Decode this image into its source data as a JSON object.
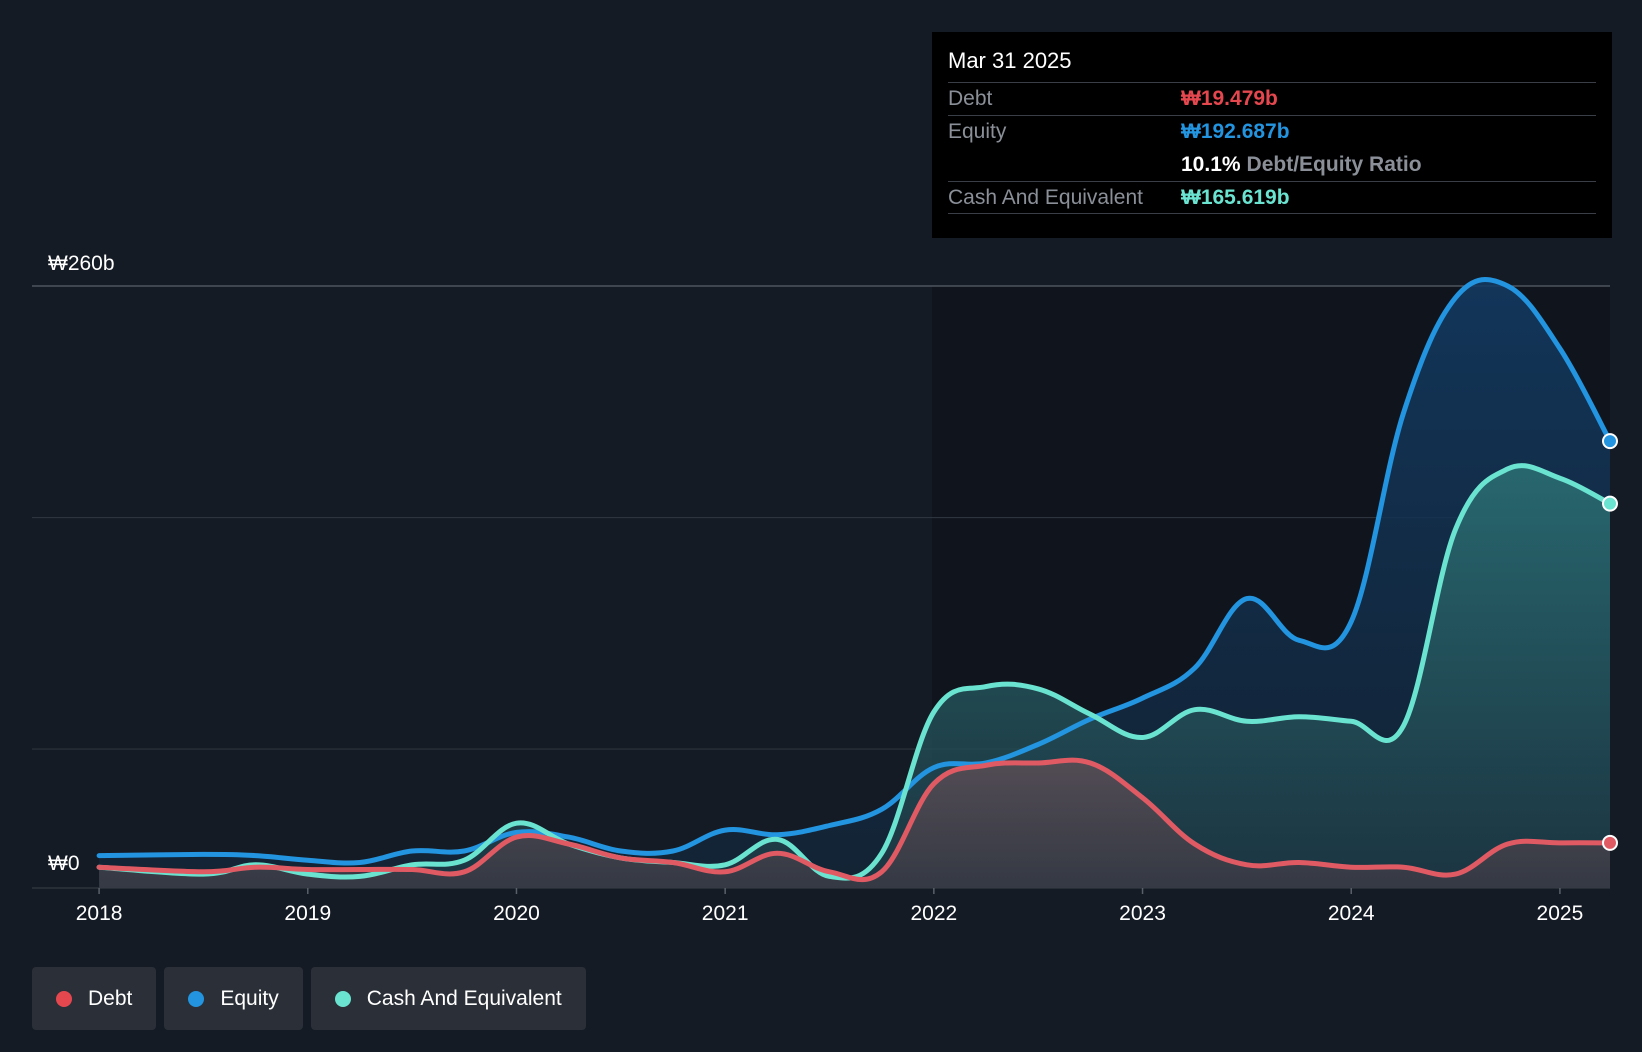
{
  "tooltip": {
    "date": "Mar 31 2025",
    "debt_label": "Debt",
    "debt_value": "₩19.479b",
    "equity_label": "Equity",
    "equity_value": "₩192.687b",
    "ratio_value": "10.1%",
    "ratio_label": "Debt/Equity Ratio",
    "cash_label": "Cash And Equivalent",
    "cash_value": "₩165.619b"
  },
  "legend": [
    {
      "label": "Debt",
      "color": "#e5474f"
    },
    {
      "label": "Equity",
      "color": "#2394df"
    },
    {
      "label": "Cash And Equivalent",
      "color": "#6ae3d0"
    }
  ],
  "colors": {
    "debt": "#e05a64",
    "equity": "#2394df",
    "cash": "#6ae3d0",
    "background": "#151b24",
    "tooltip_debt": "#e5474f",
    "tooltip_equity": "#2394df",
    "tooltip_cash": "#6ae3d0"
  },
  "chart_data": {
    "type": "area",
    "title": "",
    "xlabel": "",
    "ylabel": "",
    "y_top_label": "₩260b",
    "y_bottom_label": "₩0",
    "ylim": [
      0,
      260
    ],
    "xlim": [
      2017.99,
      2025.24
    ],
    "x_ticks": [
      "2018",
      "2019",
      "2020",
      "2021",
      "2022",
      "2023",
      "2024",
      "2025"
    ],
    "x_tick_values": [
      2018,
      2019,
      2020,
      2021,
      2022,
      2023,
      2024,
      2025
    ],
    "grid": true,
    "legend_position": "bottom-left",
    "series": [
      {
        "name": "Debt",
        "x": [
          2018.0,
          2018.5,
          2018.75,
          2019.0,
          2019.25,
          2019.5,
          2019.75,
          2020.0,
          2020.25,
          2020.5,
          2020.75,
          2021.0,
          2021.25,
          2021.5,
          2021.75,
          2022.0,
          2022.25,
          2022.5,
          2022.75,
          2023.0,
          2023.25,
          2023.5,
          2023.75,
          2024.0,
          2024.25,
          2024.5,
          2024.75,
          2025.0,
          2025.24
        ],
        "values": [
          9,
          7,
          9,
          8,
          8,
          8,
          7,
          22,
          19,
          13,
          11,
          7,
          15,
          7,
          7,
          45,
          53,
          54,
          54,
          39,
          19,
          10,
          11,
          9,
          9,
          6,
          19,
          19.5,
          19.5
        ]
      },
      {
        "name": "Equity",
        "x": [
          2018.0,
          2018.5,
          2018.75,
          2019.0,
          2019.25,
          2019.5,
          2019.75,
          2020.0,
          2020.25,
          2020.5,
          2020.75,
          2021.0,
          2021.25,
          2021.5,
          2021.75,
          2022.0,
          2022.25,
          2022.5,
          2022.75,
          2023.0,
          2023.25,
          2023.5,
          2023.75,
          2024.0,
          2024.25,
          2024.5,
          2024.75,
          2025.0,
          2025.24
        ],
        "values": [
          14,
          14.5,
          14,
          12,
          11,
          16,
          16,
          24,
          22,
          16,
          16,
          25,
          23,
          27,
          34,
          52,
          54,
          62,
          73,
          82,
          95,
          125,
          107,
          115,
          205,
          255,
          260,
          233,
          193
        ]
      },
      {
        "name": "Cash And Equivalent",
        "x": [
          2018.0,
          2018.5,
          2018.75,
          2019.0,
          2019.25,
          2019.5,
          2019.75,
          2020.0,
          2020.25,
          2020.5,
          2020.75,
          2021.0,
          2021.25,
          2021.5,
          2021.75,
          2022.0,
          2022.25,
          2022.5,
          2022.75,
          2023.0,
          2023.25,
          2023.5,
          2023.75,
          2024.0,
          2024.25,
          2024.5,
          2024.75,
          2025.0,
          2025.24
        ],
        "values": [
          9,
          6,
          10,
          6,
          5,
          10,
          12,
          28,
          19,
          13,
          11,
          10,
          21,
          5,
          15,
          76,
          87,
          86,
          75,
          65,
          77,
          72,
          74,
          72,
          70,
          155,
          181,
          177,
          166
        ]
      }
    ]
  }
}
